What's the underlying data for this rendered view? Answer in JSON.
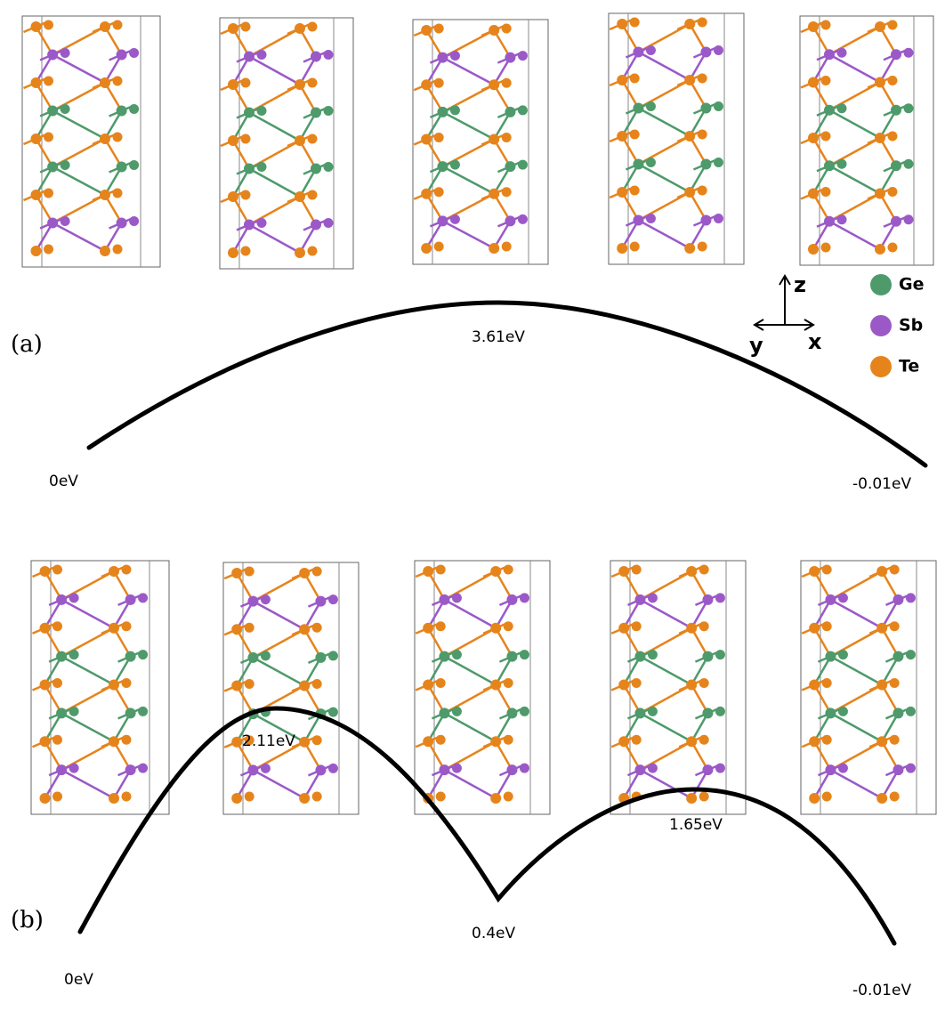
{
  "panels": [
    {
      "label": "(a)",
      "energies": [
        "0eV",
        "3.61eV",
        "-0.01eV"
      ]
    },
    {
      "label": "(b)",
      "energies": [
        "0eV",
        "2.11eV",
        "0.4eV",
        "1.65eV",
        "-0.01eV"
      ]
    }
  ],
  "legend": {
    "items": [
      "Ge",
      "Sb",
      "Te"
    ]
  },
  "axes": {
    "z": "z",
    "y": "y",
    "x": "x"
  }
}
